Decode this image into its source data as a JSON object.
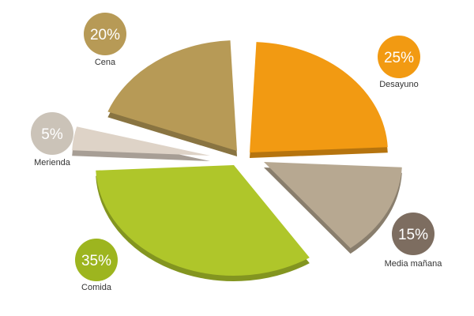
{
  "chart_data": {
    "type": "pie",
    "unit": "%",
    "slices": [
      {
        "label": "Desayuno",
        "value": 25,
        "value_label": "25%",
        "color": "#f29a12"
      },
      {
        "label": "Media mañana",
        "value": 15,
        "value_label": "15%",
        "color": "#b7a891"
      },
      {
        "label": "Comida",
        "value": 35,
        "value_label": "35%",
        "color": "#afc62a"
      },
      {
        "label": "Merienda",
        "value": 5,
        "value_label": "5%",
        "color": "#ded3c7"
      },
      {
        "label": "Cena",
        "value": 20,
        "value_label": "20%",
        "color": "#b79a56"
      }
    ],
    "bubble_colors": {
      "Desayuno": "#f29a12",
      "Media mañana": "#7d6d60",
      "Comida": "#9db51f",
      "Merienda": "#cbc3b8",
      "Cena": "#b79a56"
    },
    "legend": "labels beside each slice"
  }
}
